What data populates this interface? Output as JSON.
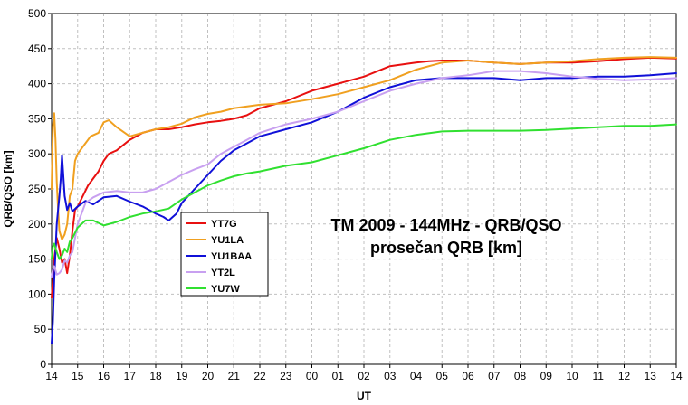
{
  "chart_data": {
    "type": "line",
    "xlabel": "UT",
    "ylabel": "QRB/QSO [km]",
    "ylim": [
      0,
      500
    ],
    "yticks": [
      0,
      50,
      100,
      150,
      200,
      250,
      300,
      350,
      400,
      450,
      500
    ],
    "xlim": [
      14,
      38
    ],
    "xtick_labels": [
      "14",
      "15",
      "16",
      "17",
      "18",
      "19",
      "20",
      "21",
      "22",
      "23",
      "00",
      "01",
      "02",
      "03",
      "04",
      "05",
      "06",
      "07",
      "08",
      "09",
      "10",
      "11",
      "12",
      "13",
      "14"
    ],
    "grid": true,
    "legend": "left-center",
    "annotation_lines": [
      "TM 2009 - 144MHz - QRB/QSO",
      "prosečan QRB [km]"
    ],
    "series": [
      {
        "name": "YT7G",
        "color": "#e81010",
        "x": [
          14.0,
          14.05,
          14.1,
          14.2,
          14.3,
          14.4,
          14.5,
          14.6,
          14.7,
          14.8,
          14.9,
          15.0,
          15.2,
          15.4,
          15.6,
          15.8,
          16.0,
          16.2,
          16.5,
          17.0,
          17.5,
          18.0,
          18.5,
          19.0,
          19.5,
          20.0,
          20.5,
          21.0,
          21.5,
          22.0,
          23.0,
          24.0,
          25.0,
          26.0,
          27.0,
          28.0,
          28.5,
          29.0,
          30.0,
          31.0,
          32.0,
          33.0,
          34.0,
          35.0,
          36.0,
          37.0,
          38.0
        ],
        "y": [
          95,
          120,
          150,
          180,
          165,
          145,
          150,
          130,
          155,
          190,
          220,
          225,
          240,
          255,
          265,
          275,
          290,
          300,
          305,
          320,
          330,
          335,
          335,
          338,
          342,
          345,
          347,
          350,
          355,
          365,
          375,
          390,
          400,
          410,
          425,
          430,
          432,
          433,
          433,
          430,
          428,
          430,
          430,
          432,
          435,
          437,
          436
        ]
      },
      {
        "name": "YU1LA",
        "color": "#f0a020",
        "x": [
          14.0,
          14.05,
          14.1,
          14.15,
          14.2,
          14.25,
          14.3,
          14.4,
          14.5,
          14.6,
          14.7,
          14.8,
          14.9,
          15.0,
          15.2,
          15.5,
          15.8,
          16.0,
          16.2,
          16.5,
          17.0,
          17.5,
          18.0,
          18.5,
          19.0,
          19.5,
          20.0,
          20.5,
          21.0,
          22.0,
          23.0,
          24.0,
          25.0,
          26.0,
          27.0,
          28.0,
          29.0,
          30.0,
          31.0,
          32.0,
          33.0,
          34.0,
          35.0,
          36.0,
          37.0,
          38.0
        ],
        "y": [
          250,
          340,
          358,
          320,
          260,
          220,
          190,
          178,
          185,
          200,
          240,
          250,
          290,
          300,
          310,
          325,
          330,
          345,
          348,
          338,
          325,
          330,
          335,
          338,
          343,
          352,
          357,
          360,
          365,
          370,
          372,
          378,
          385,
          395,
          405,
          420,
          430,
          433,
          430,
          428,
          430,
          432,
          435,
          437,
          438,
          437
        ]
      },
      {
        "name": "YU1BAA",
        "color": "#1010d8",
        "x": [
          14.0,
          14.05,
          14.1,
          14.2,
          14.3,
          14.35,
          14.4,
          14.5,
          14.6,
          14.7,
          14.8,
          15.0,
          15.3,
          15.6,
          16.0,
          16.5,
          17.0,
          17.5,
          18.0,
          18.3,
          18.5,
          18.8,
          19.0,
          19.5,
          20.0,
          20.5,
          21.0,
          21.5,
          22.0,
          23.0,
          24.0,
          25.0,
          26.0,
          27.0,
          28.0,
          29.0,
          30.0,
          31.0,
          32.0,
          33.0,
          34.0,
          35.0,
          36.0,
          37.0,
          38.0
        ],
        "y": [
          30,
          60,
          120,
          200,
          240,
          265,
          298,
          240,
          220,
          230,
          218,
          225,
          233,
          228,
          238,
          240,
          232,
          225,
          215,
          210,
          205,
          215,
          230,
          250,
          270,
          290,
          305,
          315,
          325,
          335,
          345,
          360,
          380,
          395,
          405,
          408,
          408,
          408,
          405,
          408,
          408,
          410,
          410,
          412,
          415
        ]
      },
      {
        "name": "YT2L",
        "color": "#c8a0f0",
        "x": [
          14.0,
          14.05,
          14.1,
          14.2,
          14.3,
          14.4,
          14.5,
          14.6,
          14.7,
          14.8,
          15.0,
          15.3,
          15.6,
          16.0,
          16.5,
          17.0,
          17.5,
          18.0,
          18.5,
          19.0,
          19.5,
          20.0,
          20.5,
          21.0,
          21.5,
          22.0,
          23.0,
          24.0,
          25.0,
          26.0,
          27.0,
          28.0,
          29.0,
          30.0,
          31.0,
          32.0,
          33.0,
          34.0,
          35.0,
          36.0,
          37.0,
          38.0
        ],
        "y": [
          125,
          135,
          140,
          128,
          130,
          135,
          148,
          145,
          155,
          160,
          200,
          230,
          238,
          245,
          247,
          245,
          245,
          250,
          260,
          270,
          278,
          285,
          300,
          310,
          320,
          330,
          342,
          350,
          360,
          375,
          390,
          400,
          408,
          412,
          418,
          418,
          415,
          410,
          407,
          405,
          406,
          408
        ]
      },
      {
        "name": "YU7W",
        "color": "#30e030",
        "x": [
          14.0,
          14.05,
          14.1,
          14.2,
          14.3,
          14.4,
          14.5,
          14.6,
          14.7,
          14.8,
          15.0,
          15.3,
          15.6,
          16.0,
          16.5,
          17.0,
          17.5,
          18.0,
          18.5,
          19.0,
          19.5,
          20.0,
          20.5,
          21.0,
          21.5,
          22.0,
          23.0,
          24.0,
          25.0,
          26.0,
          27.0,
          28.0,
          29.0,
          30.0,
          31.0,
          32.0,
          33.0,
          34.0,
          35.0,
          36.0,
          37.0,
          38.0
        ],
        "y": [
          150,
          168,
          172,
          160,
          150,
          155,
          165,
          160,
          175,
          180,
          195,
          205,
          205,
          198,
          203,
          210,
          215,
          218,
          222,
          235,
          245,
          255,
          262,
          268,
          272,
          275,
          283,
          288,
          298,
          308,
          320,
          327,
          332,
          333,
          333,
          333,
          334,
          336,
          338,
          340,
          340,
          342
        ]
      }
    ]
  }
}
